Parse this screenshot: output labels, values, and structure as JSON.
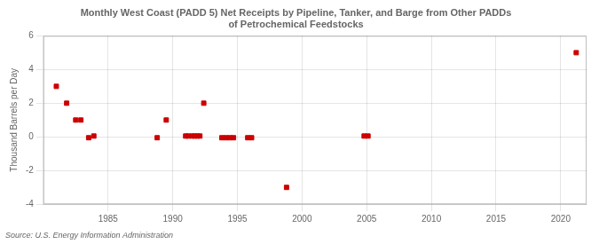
{
  "chart_data": {
    "type": "scatter",
    "title": "Monthly West Coast (PADD 5) Net Receipts by Pipeline, Tanker, and Barge from Other PADDs\nof Petrochemical Feedstocks",
    "ylabel": "Thousand Barrels per Day",
    "annotation": "Source: U.S. Energy Information Administration",
    "x": [
      1981.0,
      1981.8,
      1982.5,
      1982.9,
      1983.5,
      1983.9,
      1988.8,
      1989.5,
      1991.0,
      1991.2,
      1991.5,
      1991.7,
      1991.9,
      1992.1,
      1992.4,
      1993.8,
      1994.1,
      1994.4,
      1994.7,
      1995.8,
      1996.1,
      1998.8,
      2004.8,
      2005.1,
      2021.2
    ],
    "values": [
      3.0,
      2.0,
      1.0,
      1.0,
      -0.05,
      0.05,
      -0.05,
      1.0,
      0.05,
      0.05,
      0.05,
      0.05,
      0.05,
      0.05,
      2.0,
      -0.05,
      -0.05,
      -0.05,
      -0.05,
      -0.05,
      -0.05,
      -3.0,
      0.05,
      0.05,
      5.0
    ],
    "color": "#cc0000",
    "marker": "square",
    "xlim": [
      1980,
      2022
    ],
    "ylim": [
      -4,
      6
    ],
    "xticks": [
      1985,
      1990,
      1995,
      2000,
      2005,
      2010,
      2015,
      2020
    ],
    "yticks": [
      -4,
      -2,
      0,
      2,
      4,
      6
    ],
    "grid": true
  }
}
